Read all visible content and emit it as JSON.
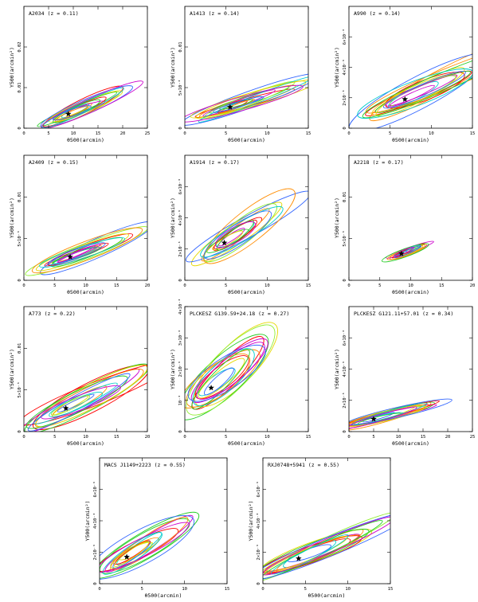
{
  "figure": {
    "xlabel": "θ500(arcmin)",
    "ylabel": "Y500(arcmin²)"
  },
  "chart_data": [
    {
      "type": "scatter",
      "title": "A2034 (z = 0.11)",
      "xlabel": "θ500(arcmin)",
      "ylabel": "Y500(arcmin²)",
      "xlim": [
        0,
        25
      ],
      "ylim": [
        0,
        0.03
      ],
      "xticks": [
        0,
        5,
        10,
        15,
        20,
        25
      ],
      "xtick_labels": [
        "0",
        "5",
        "10",
        "15",
        "20",
        "25"
      ],
      "yticks": [
        0,
        0.01,
        0.02
      ],
      "ytick_labels": [
        "0",
        "0.01",
        "0.02"
      ],
      "star": [
        9,
        0.0035
      ],
      "spread_x": 7,
      "spread_y": 0.0045,
      "colors": [
        "#ff0000",
        "#ff8c00",
        "#e6d800",
        "#22cc22",
        "#00cccc",
        "#3366ff",
        "#cc00cc",
        "#90ee30"
      ]
    },
    {
      "type": "scatter",
      "title": "A1413 (z = 0.14)",
      "xlabel": "θ500(arcmin)",
      "ylabel": "Y500(arcmin²)",
      "xlim": [
        0,
        15
      ],
      "ylim": [
        0,
        0.015
      ],
      "xticks": [
        0,
        5,
        10,
        15
      ],
      "xtick_labels": [
        "0",
        "5",
        "10",
        "15"
      ],
      "yticks": [
        0,
        0.005,
        0.01
      ],
      "ytick_labels": [
        "0",
        "5×10⁻³",
        "0.01"
      ],
      "star": [
        5.5,
        0.0026
      ],
      "spread_x": 5.5,
      "spread_y": 0.0023,
      "colors": [
        "#ff0000",
        "#ff8c00",
        "#e6d800",
        "#22cc22",
        "#00cccc",
        "#3366ff",
        "#cc00cc",
        "#90ee30"
      ]
    },
    {
      "type": "scatter",
      "title": "A990 (z = 0.14)",
      "xlabel": "θ500(arcmin)",
      "ylabel": "Y500(arcmin²)",
      "xlim": [
        0,
        15
      ],
      "ylim": [
        0,
        0.008
      ],
      "xticks": [
        0,
        5,
        10,
        15
      ],
      "xtick_labels": [
        "0",
        "5",
        "10",
        "15"
      ],
      "yticks": [
        0,
        0.002,
        0.004,
        0.006
      ],
      "ytick_labels": [
        "0",
        "2×10⁻³",
        "4×10⁻³",
        "6×10⁻³"
      ],
      "star": [
        6.8,
        0.0019
      ],
      "spread_x": 7,
      "spread_y": 0.0022,
      "colors": [
        "#ff0000",
        "#ff8c00",
        "#e6d800",
        "#22cc22",
        "#00cccc",
        "#3366ff",
        "#cc00cc",
        "#90ee30"
      ]
    },
    {
      "type": "scatter",
      "title": "A2409 (z = 0.15)",
      "xlabel": "θ500(arcmin)",
      "ylabel": "Y500(arcmin²)",
      "xlim": [
        0,
        20
      ],
      "ylim": [
        0,
        0.015
      ],
      "xticks": [
        0,
        5,
        10,
        15,
        20
      ],
      "xtick_labels": [
        "0",
        "5",
        "10",
        "15",
        "20"
      ],
      "yticks": [
        0,
        0.005,
        0.01
      ],
      "ytick_labels": [
        "0",
        "5×10⁻³",
        "0.01"
      ],
      "star": [
        7.5,
        0.0028
      ],
      "spread_x": 6.5,
      "spread_y": 0.0022,
      "colors": [
        "#ff0000",
        "#ff8c00",
        "#e6d800",
        "#22cc22",
        "#00cccc",
        "#3366ff",
        "#cc00cc",
        "#90ee30"
      ]
    },
    {
      "type": "scatter",
      "title": "A1914 (z = 0.17)",
      "xlabel": "θ500(arcmin)",
      "ylabel": "Y500(arcmin²)",
      "xlim": [
        0,
        15
      ],
      "ylim": [
        0,
        0.008
      ],
      "xticks": [
        0,
        5,
        10,
        15
      ],
      "xtick_labels": [
        "0",
        "5",
        "10",
        "15"
      ],
      "yticks": [
        0,
        0.002,
        0.004,
        0.006
      ],
      "ytick_labels": [
        "0",
        "2×10⁻³",
        "4×10⁻³",
        "6×10⁻³"
      ],
      "star": [
        4.8,
        0.0024
      ],
      "spread_x": 5,
      "spread_y": 0.0022,
      "colors": [
        "#ff0000",
        "#ff8c00",
        "#e6d800",
        "#22cc22",
        "#00cccc",
        "#3366ff",
        "#cc00cc",
        "#90ee30"
      ]
    },
    {
      "type": "scatter",
      "title": "A2218 (z = 0.17)",
      "xlabel": "θ500(arcmin)",
      "ylabel": "Y500(arcmin²)",
      "xlim": [
        0,
        20
      ],
      "ylim": [
        0,
        0.015
      ],
      "xticks": [
        0,
        5,
        10,
        15,
        20
      ],
      "xtick_labels": [
        "0",
        "5",
        "10",
        "15",
        "20"
      ],
      "yticks": [
        0,
        0.005,
        0.01
      ],
      "ytick_labels": [
        "0",
        "5×10⁻³",
        "0.01"
      ],
      "star": [
        8.5,
        0.0032
      ],
      "spread_x": 2.5,
      "spread_y": 0.0009,
      "colors": [
        "#ff0000",
        "#ff8c00",
        "#e6d800",
        "#22cc22",
        "#00cccc",
        "#3366ff",
        "#cc00cc",
        "#90ee30"
      ]
    },
    {
      "type": "scatter",
      "title": "A773 (z = 0.22)",
      "xlabel": "θ500(arcmin)",
      "ylabel": "Y500(arcmin²)",
      "xlim": [
        0,
        20
      ],
      "ylim": [
        0,
        0.015
      ],
      "xticks": [
        0,
        5,
        10,
        15,
        20
      ],
      "xtick_labels": [
        "0",
        "5",
        "10",
        "15",
        "20"
      ],
      "yticks": [
        0,
        0.005,
        0.01
      ],
      "ytick_labels": [
        "0",
        "5×10⁻³",
        "0.01"
      ],
      "star": [
        6.8,
        0.0028
      ],
      "spread_x": 8,
      "spread_y": 0.0035,
      "colors": [
        "#ff0000",
        "#ff8c00",
        "#e6d800",
        "#22cc22",
        "#00cccc",
        "#3366ff",
        "#cc00cc",
        "#90ee30"
      ]
    },
    {
      "type": "scatter",
      "title": "PLCKESZ G139.59+24.18 (z = 0.27)",
      "xlabel": "θ500(arcmin)",
      "ylabel": "Y500(arcmin²)",
      "xlim": [
        0,
        15
      ],
      "ylim": [
        0,
        0.004
      ],
      "xticks": [
        0,
        5,
        10,
        15
      ],
      "xtick_labels": [
        "0",
        "5",
        "10",
        "15"
      ],
      "yticks": [
        0,
        0.001,
        0.002,
        0.003,
        0.004
      ],
      "ytick_labels": [
        "0",
        "10⁻³",
        "2×10⁻³",
        "3×10⁻³",
        "4×10⁻³"
      ],
      "star": [
        3.2,
        0.0014
      ],
      "spread_x": 5,
      "spread_y": 0.0015,
      "colors": [
        "#ff0000",
        "#ff8c00",
        "#e6d800",
        "#22cc22",
        "#00cccc",
        "#3366ff",
        "#cc00cc",
        "#90ee30"
      ]
    },
    {
      "type": "scatter",
      "title": "PLCKESZ G121.11+57.01 (z = 0.34)",
      "xlabel": "θ500(arcmin)",
      "ylabel": "Y500(arcmin²)",
      "xlim": [
        0,
        25
      ],
      "ylim": [
        0,
        0.008
      ],
      "xticks": [
        0,
        5,
        10,
        15,
        20,
        25
      ],
      "xtick_labels": [
        "0",
        "5",
        "10",
        "15",
        "20",
        "25"
      ],
      "yticks": [
        0,
        0.002,
        0.004,
        0.006
      ],
      "ytick_labels": [
        "0",
        "2×10⁻³",
        "4×10⁻³",
        "6×10⁻³"
      ],
      "star": [
        5,
        0.0008
      ],
      "spread_x": 8,
      "spread_y": 0.0008,
      "colors": [
        "#ff0000",
        "#ff8c00",
        "#e6d800",
        "#22cc22",
        "#00cccc",
        "#3366ff",
        "#cc00cc",
        "#90ee30"
      ]
    },
    {
      "type": "scatter",
      "title": "MACS J1149+2223 (z = 0.55)",
      "xlabel": "θ500(arcmin)",
      "ylabel": "Y500(arcmin²)",
      "xlim": [
        0,
        15
      ],
      "ylim": [
        0,
        0.008
      ],
      "xticks": [
        0,
        5,
        10,
        15
      ],
      "xtick_labels": [
        "0",
        "5",
        "10",
        "15"
      ],
      "yticks": [
        0,
        0.002,
        0.004,
        0.006
      ],
      "ytick_labels": [
        "0",
        "2×10⁻³",
        "4×10⁻³",
        "6×10⁻³"
      ],
      "star": [
        3.2,
        0.0017
      ],
      "spread_x": 5.5,
      "spread_y": 0.0022,
      "colors": [
        "#ff0000",
        "#ff8c00",
        "#e6d800",
        "#22cc22",
        "#00cccc",
        "#3366ff",
        "#cc00cc",
        "#90ee30"
      ]
    },
    {
      "type": "scatter",
      "title": "RXJ0748+5941 (z = 0.55)",
      "xlabel": "θ500(arcmin)",
      "ylabel": "Y500(arcmin²)",
      "xlim": [
        0,
        15
      ],
      "ylim": [
        0,
        0.008
      ],
      "xticks": [
        0,
        5,
        10,
        15
      ],
      "xtick_labels": [
        "0",
        "5",
        "10",
        "15"
      ],
      "yticks": [
        0,
        0.002,
        0.004,
        0.006
      ],
      "ytick_labels": [
        "0",
        "2×10⁻³",
        "4×10⁻³",
        "6×10⁻³"
      ],
      "star": [
        4.2,
        0.0016
      ],
      "spread_x": 6.5,
      "spread_y": 0.0018,
      "colors": [
        "#ff0000",
        "#ff8c00",
        "#e6d800",
        "#22cc22",
        "#00cccc",
        "#3366ff",
        "#cc00cc",
        "#90ee30"
      ]
    }
  ]
}
